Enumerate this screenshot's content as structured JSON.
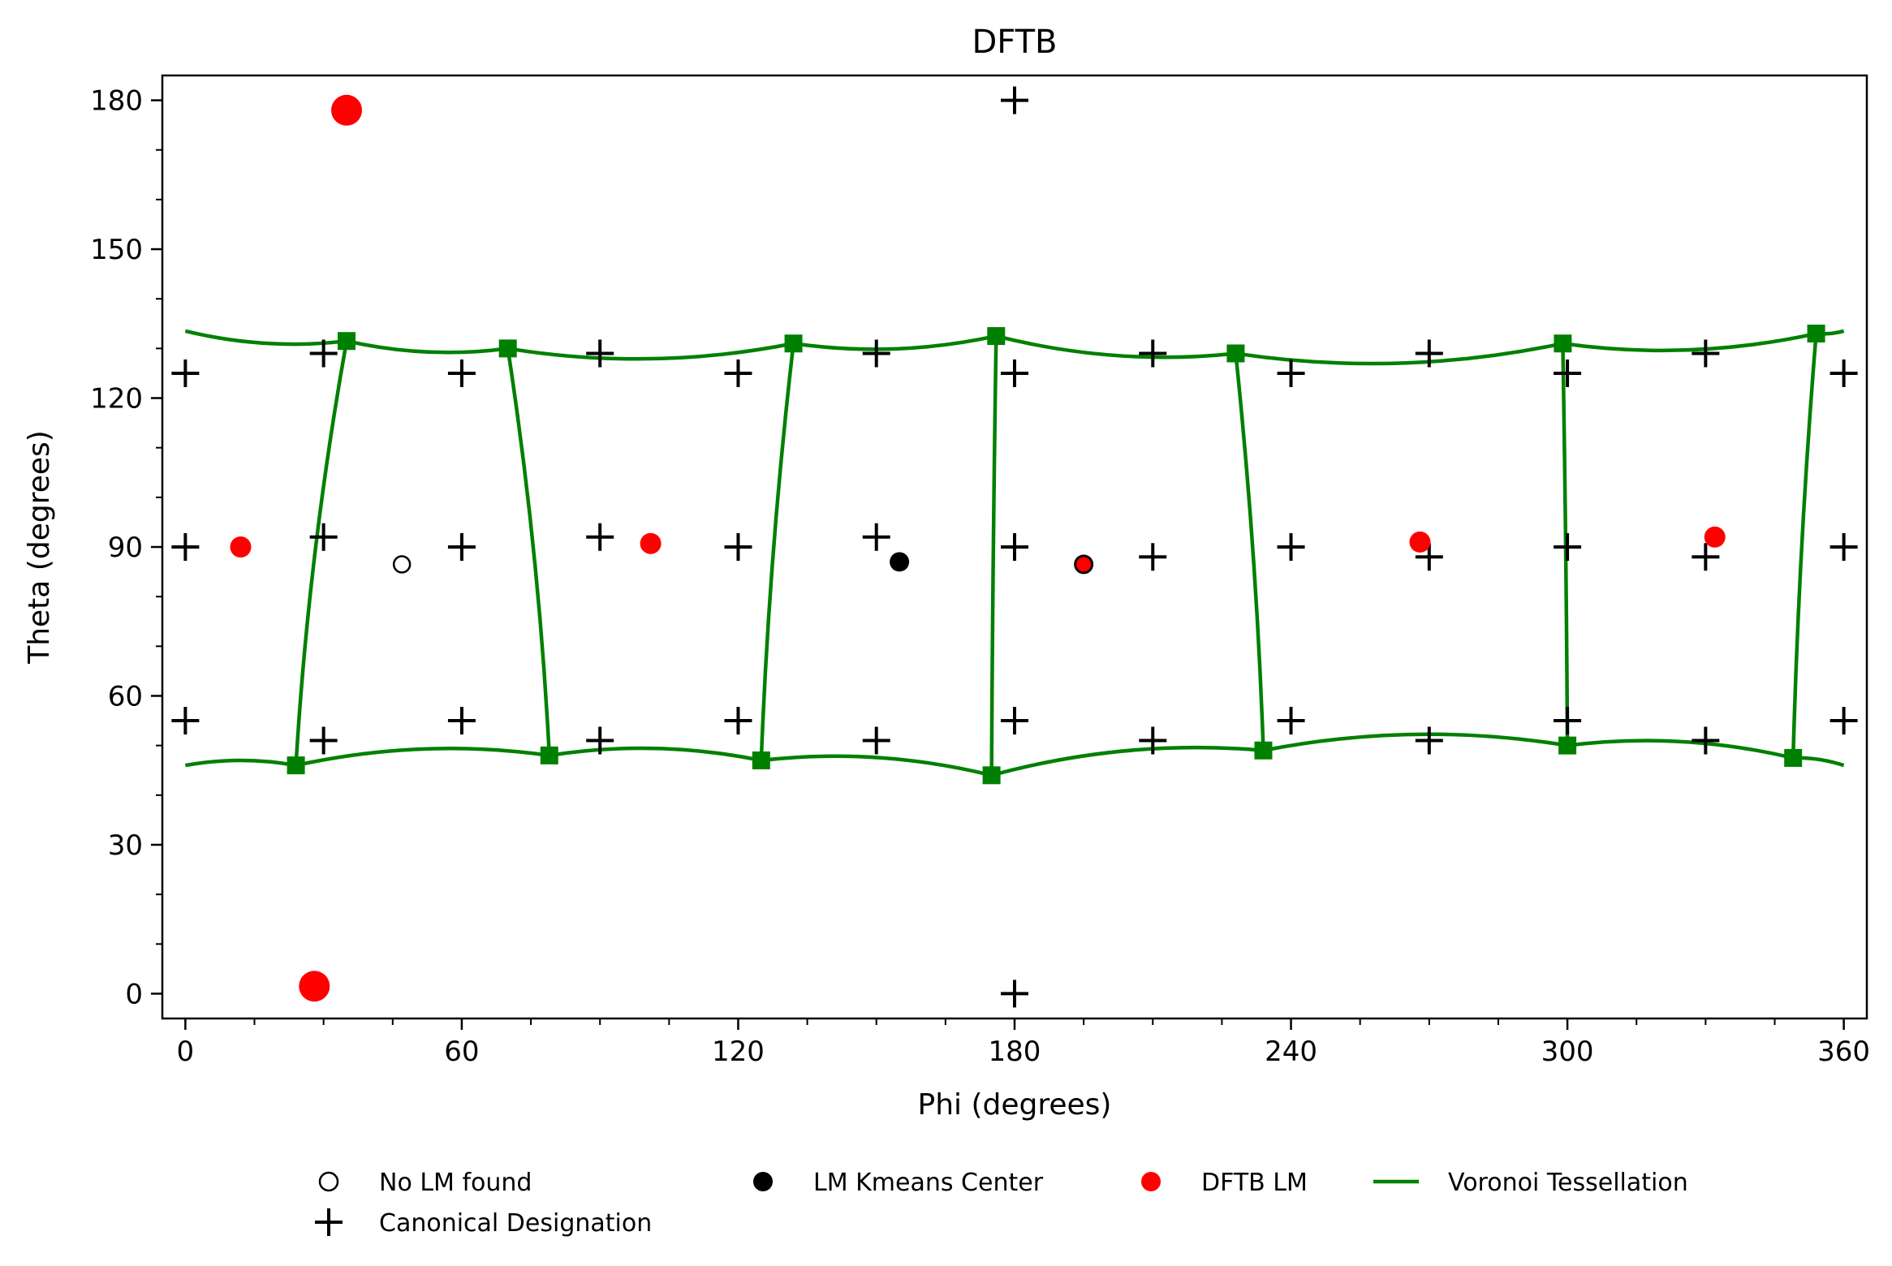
{
  "chart_data": {
    "type": "scatter",
    "title": "DFTB",
    "xlabel": "Phi (degrees)",
    "ylabel": "Theta (degrees)",
    "xlim": [
      -5,
      365
    ],
    "ylim": [
      185,
      -5
    ],
    "y_inverted": true,
    "xticks": [
      0,
      60,
      120,
      180,
      240,
      300,
      360
    ],
    "yticks": [
      0,
      30,
      60,
      90,
      120,
      150,
      180
    ],
    "x_minor_step": 15,
    "y_minor_step": 10,
    "grid": false,
    "legend_position": "below",
    "legend": [
      {
        "key": "no_lm",
        "label": "No LM found",
        "marker": "hollow-circle"
      },
      {
        "key": "kmeans",
        "label": "LM Kmeans Center",
        "marker": "black-circle"
      },
      {
        "key": "dftb",
        "label": "DFTB LM",
        "marker": "red-circle"
      },
      {
        "key": "voronoi",
        "label": "Voronoi Tessellation",
        "marker": "green-line"
      },
      {
        "key": "canonical",
        "label": "Canonical Designation",
        "marker": "plus"
      }
    ],
    "colors": {
      "dftb": "#ff0000",
      "voronoi": "#008000",
      "kmeans": "#000000",
      "canonical": "#000000"
    },
    "series": {
      "canonical": [
        [
          180,
          0
        ],
        [
          180,
          180
        ],
        [
          0,
          55
        ],
        [
          60,
          55
        ],
        [
          120,
          55
        ],
        [
          180,
          55
        ],
        [
          240,
          55
        ],
        [
          300,
          55
        ],
        [
          360,
          55
        ],
        [
          30,
          51
        ],
        [
          90,
          51
        ],
        [
          150,
          51
        ],
        [
          210,
          51
        ],
        [
          270,
          51
        ],
        [
          330,
          51
        ],
        [
          0,
          90
        ],
        [
          60,
          90
        ],
        [
          120,
          90
        ],
        [
          180,
          90
        ],
        [
          240,
          90
        ],
        [
          300,
          90
        ],
        [
          360,
          90
        ],
        [
          30,
          92
        ],
        [
          90,
          92
        ],
        [
          150,
          92
        ],
        [
          210,
          88
        ],
        [
          270,
          88
        ],
        [
          330,
          88
        ],
        [
          0,
          125
        ],
        [
          60,
          125
        ],
        [
          120,
          125
        ],
        [
          180,
          125
        ],
        [
          240,
          125
        ],
        [
          300,
          125
        ],
        [
          360,
          125
        ],
        [
          30,
          129
        ],
        [
          90,
          129
        ],
        [
          150,
          129
        ],
        [
          210,
          129
        ],
        [
          270,
          129
        ],
        [
          330,
          129
        ]
      ],
      "dftb_lm": [
        {
          "x": 28,
          "y": 1.5,
          "size": "large"
        },
        {
          "x": 35,
          "y": 178,
          "size": "large"
        },
        {
          "x": 12,
          "y": 90,
          "size": "small"
        },
        {
          "x": 101,
          "y": 90.7,
          "size": "small"
        },
        {
          "x": 195,
          "y": 86.5,
          "size": "small"
        },
        {
          "x": 268,
          "y": 91,
          "size": "small"
        },
        {
          "x": 332,
          "y": 92,
          "size": "small"
        }
      ],
      "kmeans_center": [
        [
          155,
          87
        ],
        [
          195,
          86.5
        ]
      ],
      "no_lm_found": [
        [
          47,
          86.5
        ]
      ],
      "voronoi_vertices": [
        [
          24,
          46
        ],
        [
          79,
          48
        ],
        [
          125,
          47
        ],
        [
          175,
          44
        ],
        [
          234,
          49
        ],
        [
          300,
          50
        ],
        [
          349,
          47.5
        ],
        [
          35,
          131.5
        ],
        [
          70,
          130
        ],
        [
          132,
          131
        ],
        [
          176,
          132.5
        ],
        [
          228,
          129
        ],
        [
          299,
          131
        ],
        [
          354,
          133
        ]
      ],
      "voronoi_top_arcs": [
        [
          [
            0,
            46
          ],
          [
            24,
            46
          ]
        ],
        [
          [
            24,
            46
          ],
          [
            79,
            48
          ]
        ],
        [
          [
            79,
            48
          ],
          [
            125,
            47
          ]
        ],
        [
          [
            125,
            47
          ],
          [
            175,
            44
          ]
        ],
        [
          [
            175,
            44
          ],
          [
            234,
            49
          ]
        ],
        [
          [
            234,
            49
          ],
          [
            300,
            50
          ]
        ],
        [
          [
            300,
            50
          ],
          [
            349,
            47.5
          ]
        ],
        [
          [
            349,
            47.5
          ],
          [
            360,
            46
          ]
        ]
      ],
      "voronoi_bottom_arcs": [
        [
          [
            0,
            133.5
          ],
          [
            35,
            131.5
          ]
        ],
        [
          [
            35,
            131.5
          ],
          [
            70,
            130
          ]
        ],
        [
          [
            70,
            130
          ],
          [
            132,
            131
          ]
        ],
        [
          [
            132,
            131
          ],
          [
            176,
            132.5
          ]
        ],
        [
          [
            176,
            132.5
          ],
          [
            228,
            129
          ]
        ],
        [
          [
            228,
            129
          ],
          [
            299,
            131
          ]
        ],
        [
          [
            299,
            131
          ],
          [
            354,
            133
          ]
        ],
        [
          [
            354,
            133
          ],
          [
            360,
            133.5
          ]
        ]
      ],
      "voronoi_verticals": [
        [
          [
            24,
            46
          ],
          [
            35,
            131.5
          ]
        ],
        [
          [
            79,
            48
          ],
          [
            70,
            130
          ]
        ],
        [
          [
            125,
            47
          ],
          [
            132,
            131
          ]
        ],
        [
          [
            175,
            44
          ],
          [
            176,
            132.5
          ]
        ],
        [
          [
            234,
            49
          ],
          [
            228,
            129
          ]
        ],
        [
          [
            300,
            50
          ],
          [
            299,
            131
          ]
        ],
        [
          [
            349,
            47.5
          ],
          [
            354,
            133
          ]
        ]
      ]
    }
  }
}
